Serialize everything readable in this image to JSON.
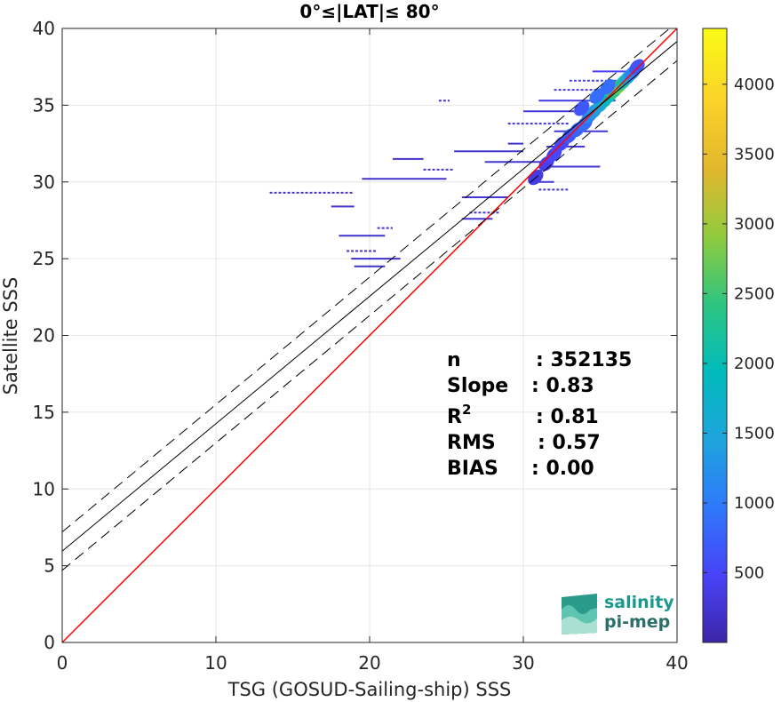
{
  "chart_data": {
    "type": "heatmap",
    "title": "0°≤|LAT|≤ 80°",
    "xlabel": "TSG (GOSUD-Sailing-ship) SSS",
    "ylabel": "Satellite SSS",
    "xlim": [
      0,
      40
    ],
    "ylim": [
      0,
      40
    ],
    "x_ticks": [
      "0",
      "10",
      "20",
      "30",
      "40"
    ],
    "y_ticks": [
      "0",
      "5",
      "10",
      "15",
      "20",
      "25",
      "30",
      "35",
      "40"
    ],
    "grid": true,
    "colorbar": {
      "range": [
        0,
        4400
      ],
      "ticks": [
        "500",
        "1000",
        "1500",
        "2000",
        "2500",
        "3000",
        "3500",
        "4000"
      ],
      "colors": [
        "#3e26a8",
        "#4743f8",
        "#2f79fb",
        "#1ea4dc",
        "#01bbbc",
        "#2dc581",
        "#90cb3e",
        "#e2b72d",
        "#fbd12a",
        "#f9fb15"
      ]
    },
    "lines": [
      {
        "name": "1:1",
        "color": "#ff0000",
        "style": "solid",
        "intercept": 0,
        "slope": 1
      },
      {
        "name": "fit",
        "color": "#000000",
        "style": "solid",
        "intercept": 5.95,
        "slope": 0.83
      },
      {
        "name": "fit+",
        "color": "#000000",
        "style": "dashed",
        "intercept": 7.2,
        "slope": 0.83
      },
      {
        "name": "fit-",
        "color": "#000000",
        "style": "dashed",
        "intercept": 4.7,
        "slope": 0.83
      }
    ],
    "stats": [
      {
        "label": "n",
        "value": ": 352135"
      },
      {
        "label": "Slope",
        "value": ": 0.83"
      },
      {
        "label": "R",
        "sup": "2",
        "value": ": 0.81"
      },
      {
        "label": "RMS",
        "value": ": 0.57"
      },
      {
        "label": "BIAS",
        "value": ": 0.00"
      }
    ],
    "segments": [
      {
        "x1": 13.5,
        "x2": 19.0,
        "y": 29.3,
        "level": 0.05
      },
      {
        "x1": 17.5,
        "x2": 19.0,
        "y": 28.4,
        "level": 0.05
      },
      {
        "x1": 18.0,
        "x2": 21.0,
        "y": 26.5,
        "level": 0.05
      },
      {
        "x1": 18.5,
        "x2": 20.5,
        "y": 25.5,
        "level": 0.05
      },
      {
        "x1": 18.8,
        "x2": 22.0,
        "y": 25.0,
        "level": 0.05
      },
      {
        "x1": 19.0,
        "x2": 21.0,
        "y": 24.5,
        "level": 0.05
      },
      {
        "x1": 20.5,
        "x2": 21.5,
        "y": 27.0,
        "level": 0.05
      },
      {
        "x1": 19.5,
        "x2": 25.0,
        "y": 30.2,
        "level": 0.05
      },
      {
        "x1": 21.5,
        "x2": 23.5,
        "y": 31.5,
        "level": 0.05
      },
      {
        "x1": 23.5,
        "x2": 25.5,
        "y": 30.8,
        "level": 0.05
      },
      {
        "x1": 25.5,
        "x2": 30.0,
        "y": 32.0,
        "level": 0.06
      },
      {
        "x1": 26.0,
        "x2": 29.0,
        "y": 29.0,
        "level": 0.06
      },
      {
        "x1": 26.5,
        "x2": 28.5,
        "y": 28.0,
        "level": 0.06
      },
      {
        "x1": 26.0,
        "x2": 28.0,
        "y": 27.6,
        "level": 0.06
      },
      {
        "x1": 27.5,
        "x2": 31.5,
        "y": 31.3,
        "level": 0.06
      },
      {
        "x1": 29.0,
        "x2": 33.0,
        "y": 33.8,
        "level": 0.06
      },
      {
        "x1": 30.0,
        "x2": 34.5,
        "y": 34.6,
        "level": 0.07
      },
      {
        "x1": 31.0,
        "x2": 36.0,
        "y": 35.3,
        "level": 0.08
      },
      {
        "x1": 32.0,
        "x2": 36.5,
        "y": 36.0,
        "level": 0.08
      },
      {
        "x1": 31.5,
        "x2": 34.0,
        "y": 32.3,
        "level": 0.07
      },
      {
        "x1": 32.0,
        "x2": 35.5,
        "y": 33.3,
        "level": 0.07
      },
      {
        "x1": 31.0,
        "x2": 33.0,
        "y": 29.5,
        "level": 0.06
      },
      {
        "x1": 31.5,
        "x2": 35.0,
        "y": 31.0,
        "level": 0.06
      },
      {
        "x1": 30.5,
        "x2": 32.0,
        "y": 30.0,
        "level": 0.06
      },
      {
        "x1": 33.0,
        "x2": 37.0,
        "y": 36.6,
        "level": 0.1
      },
      {
        "x1": 34.5,
        "x2": 37.5,
        "y": 37.2,
        "level": 0.1
      },
      {
        "x1": 29.0,
        "x2": 30.0,
        "y": 32.5,
        "level": 0.05
      },
      {
        "x1": 24.5,
        "x2": 25.2,
        "y": 35.3,
        "level": 0.05
      }
    ],
    "core": [
      {
        "x": 30.8,
        "y": 30.3,
        "level": 0.08
      },
      {
        "x": 31.5,
        "y": 31.2,
        "level": 0.1
      },
      {
        "x": 32.0,
        "y": 31.8,
        "level": 0.12
      },
      {
        "x": 32.5,
        "y": 32.5,
        "level": 0.12
      },
      {
        "x": 33.0,
        "y": 33.0,
        "level": 0.15
      },
      {
        "x": 33.5,
        "y": 33.4,
        "level": 0.18
      },
      {
        "x": 34.0,
        "y": 33.8,
        "level": 0.2
      },
      {
        "x": 34.3,
        "y": 34.3,
        "level": 0.25
      },
      {
        "x": 34.6,
        "y": 34.6,
        "level": 0.3
      },
      {
        "x": 35.0,
        "y": 35.0,
        "level": 0.35
      },
      {
        "x": 35.3,
        "y": 35.3,
        "level": 0.4
      },
      {
        "x": 35.6,
        "y": 35.6,
        "level": 0.45
      },
      {
        "x": 35.9,
        "y": 35.9,
        "level": 0.55
      },
      {
        "x": 36.2,
        "y": 36.2,
        "level": 0.62
      },
      {
        "x": 36.5,
        "y": 36.5,
        "level": 0.5
      },
      {
        "x": 36.8,
        "y": 36.8,
        "level": 0.35
      },
      {
        "x": 37.1,
        "y": 37.1,
        "level": 0.25
      },
      {
        "x": 37.4,
        "y": 37.5,
        "level": 0.15
      },
      {
        "x": 34.8,
        "y": 35.6,
        "level": 0.2
      },
      {
        "x": 35.5,
        "y": 36.2,
        "level": 0.2
      },
      {
        "x": 33.8,
        "y": 34.8,
        "level": 0.15
      }
    ]
  },
  "logo": {
    "line1": "salinity",
    "line2": "pi-mep"
  }
}
